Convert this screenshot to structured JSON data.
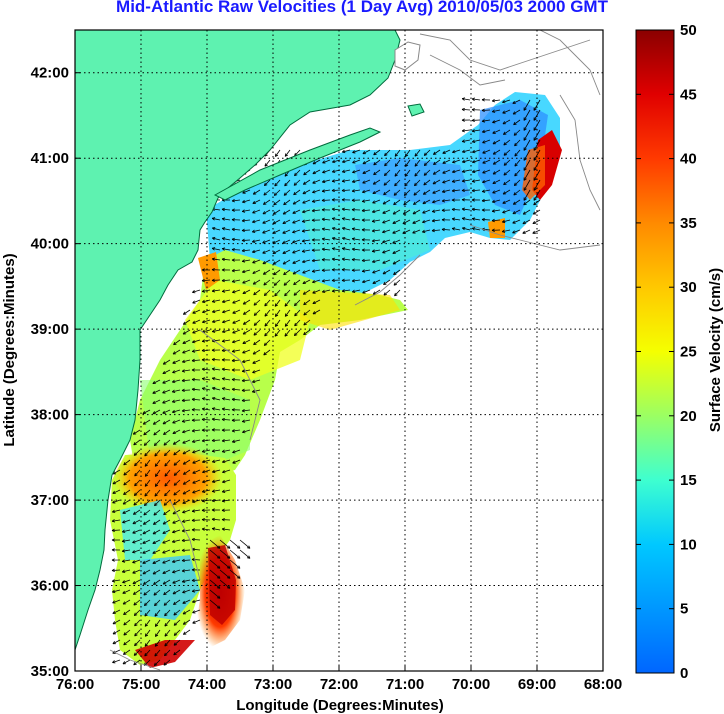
{
  "title": "Mid-Atlantic Raw Velocities (1 Day Avg) 2010/05/03 2000 GMT",
  "map": {
    "xlabel": "Longitude (Degrees:Minutes)",
    "ylabel": "Latitude (Degrees:Minutes)",
    "x_ticks": [
      "76:00",
      "75:00",
      "74:00",
      "73:00",
      "72:00",
      "71:00",
      "70:00",
      "69:00",
      "68:00"
    ],
    "y_ticks": [
      "42:00",
      "41:00",
      "40:00",
      "39:00",
      "38:00",
      "37:00",
      "36:00",
      "35:00"
    ],
    "lon_range": [
      -76,
      -68
    ],
    "lat_range": [
      35,
      42.5
    ],
    "grid": true,
    "land_color": "#5ef2b0",
    "contour_color": "#888888"
  },
  "colorbar": {
    "label": "Surface Velocity (cm/s)",
    "ticks": [
      "50",
      "45",
      "40",
      "35",
      "30",
      "25",
      "20",
      "15",
      "10",
      "5",
      "0"
    ],
    "range": [
      0,
      50
    ]
  }
}
